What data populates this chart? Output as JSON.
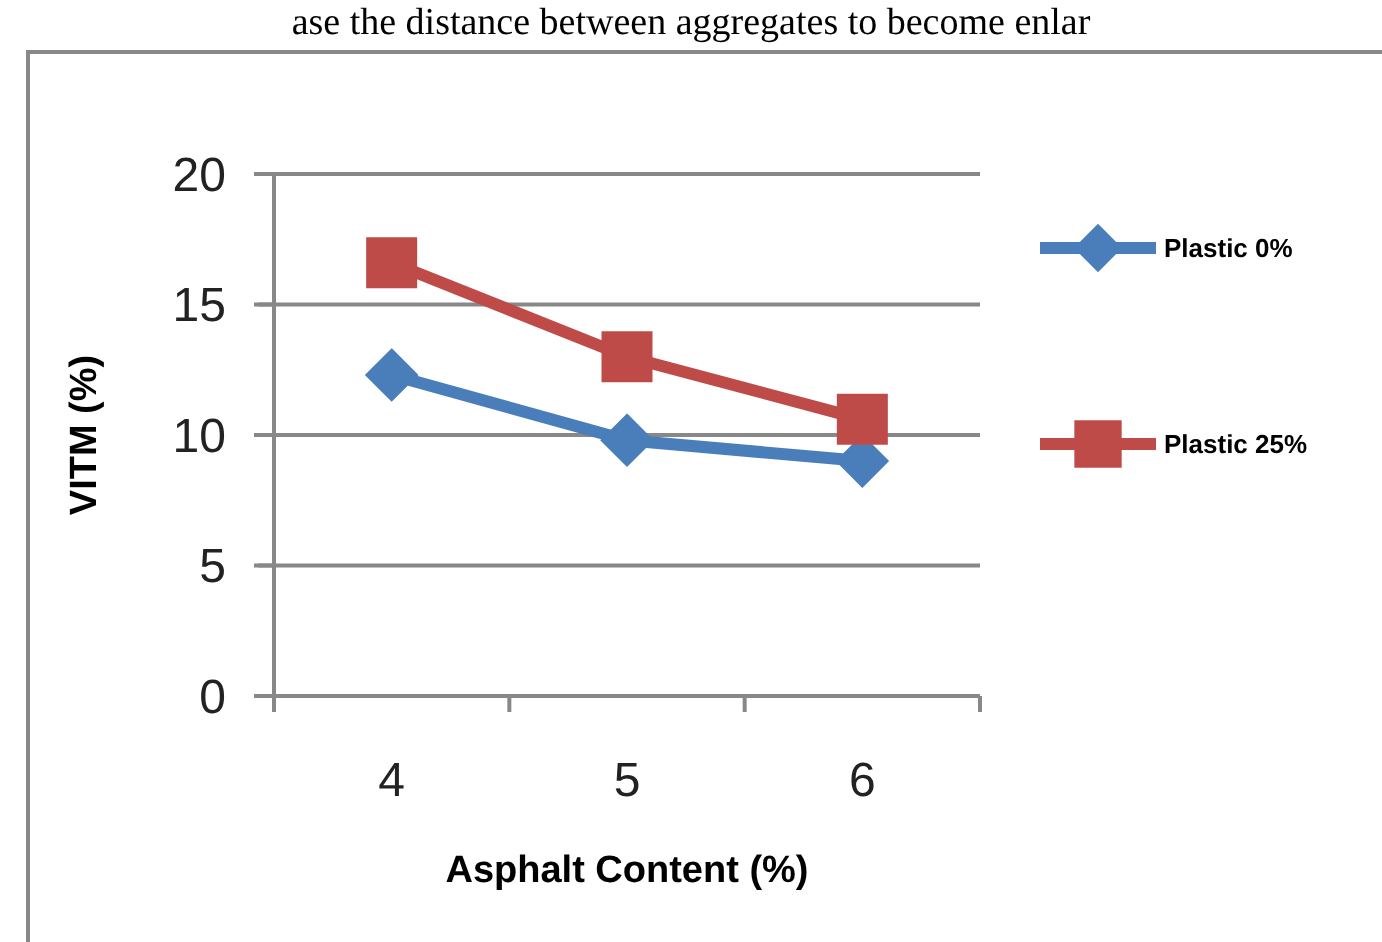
{
  "chart_data": {
    "type": "line",
    "xlabel": "Asphalt Content (%)",
    "ylabel": "VITM (%)",
    "categories": [
      "4",
      "5",
      "6"
    ],
    "series": [
      {
        "name": "Plastic 0%",
        "color": "#4a7ebb",
        "values": [
          12.3,
          9.8,
          9.0
        ],
        "marker": "diamond"
      },
      {
        "name": "Plastic 25%",
        "color": "#be4b48",
        "values": [
          16.6,
          13.0,
          10.6
        ],
        "marker": "square"
      }
    ],
    "ylim": [
      0,
      20
    ],
    "yticks": [
      0,
      5,
      10,
      15,
      20
    ],
    "grid": "y",
    "legend": "right",
    "line_style": "solid",
    "annotations": [
      "ase the distance between aggregates to become enlar"
    ]
  }
}
